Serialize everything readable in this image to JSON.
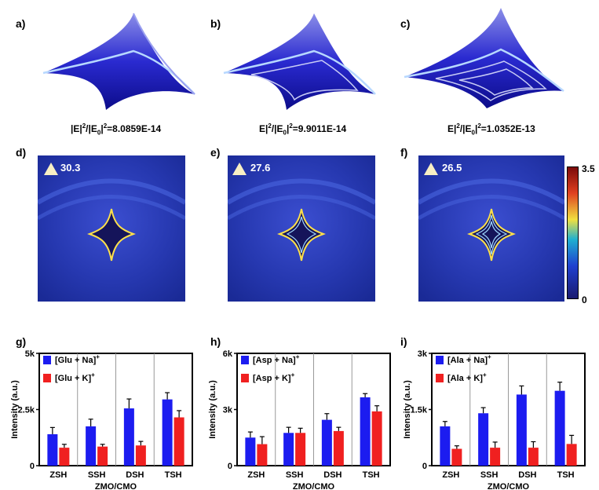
{
  "panels": {
    "a": "a)",
    "b": "b)",
    "c": "c)",
    "d": "d)",
    "e": "e)",
    "f": "f)",
    "g": "g)",
    "h": "h)",
    "i": "i)"
  },
  "captions": {
    "a": {
      "pre": "|E|",
      "exp1": "2",
      "mid": "/|E",
      "sub": "0",
      "mid2": "|",
      "exp2": "2",
      "post": "=8.0859E-14"
    },
    "b": {
      "pre": "E|",
      "exp1": "2",
      "mid": "/|E",
      "sub": "0",
      "mid2": "|",
      "exp2": "2",
      "post": "=9.9011E-14"
    },
    "c": {
      "pre": "E|",
      "exp1": "2",
      "mid": "/|E",
      "sub": "0",
      "mid2": "|",
      "exp2": "2",
      "post": "=1.0352E-13"
    }
  },
  "field_scores": {
    "d": "30.3",
    "e": "27.6",
    "f": "26.5"
  },
  "colorbar": {
    "max": "3.5",
    "min": "0"
  },
  "colors": {
    "na": "#1c1cf0",
    "k": "#f02020",
    "field_bg": "#2b3fb8"
  },
  "chart_data": [
    {
      "type": "bar",
      "categories": [
        "ZSH",
        "SSH",
        "DSH",
        "TSH"
      ],
      "xlabel": "ZMO/CMO",
      "ylabel": "Intensity (a.u.)",
      "ylim": [
        0,
        5000
      ],
      "yticks": [
        "0",
        "2.5k",
        "5k"
      ],
      "legend_position": "top-left",
      "series": [
        {
          "name": "[Glu + Na]",
          "sup": "+",
          "values": [
            1400,
            1750,
            2550,
            2950
          ],
          "errors": [
            300,
            320,
            420,
            300
          ]
        },
        {
          "name": "[Glu + K]",
          "sup": "+",
          "values": [
            800,
            850,
            900,
            2150
          ],
          "errors": [
            150,
            100,
            180,
            300
          ]
        }
      ]
    },
    {
      "type": "bar",
      "categories": [
        "ZSH",
        "SSH",
        "DSH",
        "TSH"
      ],
      "xlabel": "ZMO/CMO",
      "ylabel": "Intensity (a.u.)",
      "ylim": [
        0,
        6000
      ],
      "yticks": [
        "0",
        "3k",
        "6k"
      ],
      "legend_position": "top-left",
      "series": [
        {
          "name": "[Asp + Na]",
          "sup": "+",
          "values": [
            1500,
            1750,
            2450,
            3650
          ],
          "errors": [
            300,
            300,
            330,
            200
          ]
        },
        {
          "name": "[Asp + K]",
          "sup": "+",
          "values": [
            1150,
            1750,
            1850,
            2900
          ],
          "errors": [
            400,
            250,
            200,
            300
          ]
        }
      ]
    },
    {
      "type": "bar",
      "categories": [
        "ZSH",
        "SSH",
        "DSH",
        "TSH"
      ],
      "xlabel": "ZMO/CMO",
      "ylabel": "Intensity (a.u.)",
      "ylim": [
        0,
        3000
      ],
      "yticks": [
        "0",
        "1.5k",
        "3k"
      ],
      "legend_position": "top-left",
      "series": [
        {
          "name": "[Ala + Na]",
          "sup": "+",
          "values": [
            1050,
            1400,
            1900,
            2000
          ],
          "errors": [
            130,
            150,
            230,
            230
          ]
        },
        {
          "name": "[Ala + K]",
          "sup": "+",
          "values": [
            450,
            480,
            480,
            580
          ],
          "errors": [
            80,
            150,
            160,
            230
          ]
        }
      ]
    }
  ]
}
